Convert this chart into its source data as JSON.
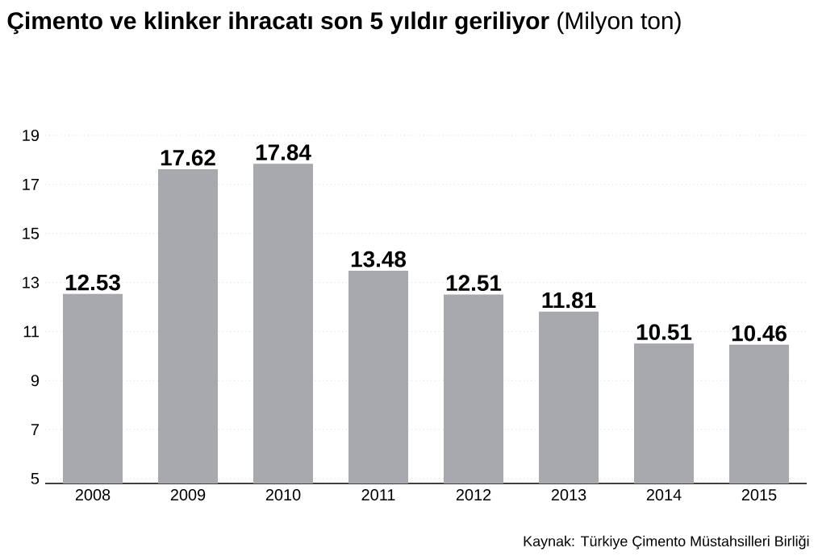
{
  "chart_data": {
    "type": "bar",
    "title": "**Çimento ve klinker ihracatı son 5 yıldır geriliyor** (Milyon ton)",
    "categories": [
      "2008",
      "2009",
      "2010",
      "2011",
      "2012",
      "2013",
      "2014",
      "2015"
    ],
    "values": [
      12.53,
      17.62,
      17.84,
      13.48,
      12.51,
      11.81,
      10.51,
      10.46
    ],
    "color": "#a7a9ac",
    "ylim": [
      4.8,
      19
    ],
    "yticks": [
      5,
      7,
      9,
      11,
      13,
      15,
      17,
      19
    ],
    "grid": "y",
    "data_labels": true,
    "annotations": [
      "Kaynak: Türkiye Çimento Müstahsilleri Birliği"
    ]
  }
}
